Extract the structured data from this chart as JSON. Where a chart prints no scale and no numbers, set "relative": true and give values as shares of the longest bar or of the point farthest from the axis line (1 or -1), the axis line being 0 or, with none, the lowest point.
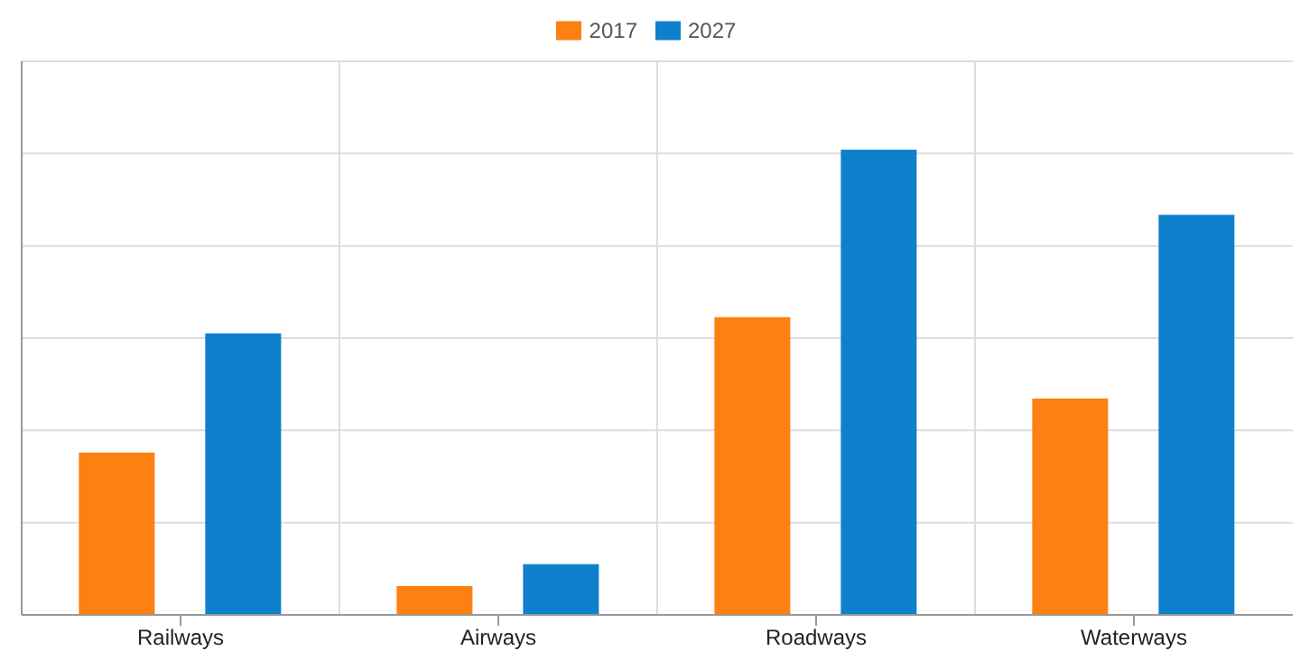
{
  "chart_data": {
    "type": "bar",
    "relative": true,
    "categories": [
      "Railways",
      "Airways",
      "Roadways",
      "Waterways"
    ],
    "series": [
      {
        "name": "2017",
        "color": "#fd8012",
        "values": [
          0.349,
          0.062,
          0.64,
          0.465
        ]
      },
      {
        "name": "2027",
        "color": "#0f81cc",
        "values": [
          0.605,
          0.109,
          1,
          0.86
        ]
      }
    ],
    "grid": true,
    "legend": "top"
  }
}
